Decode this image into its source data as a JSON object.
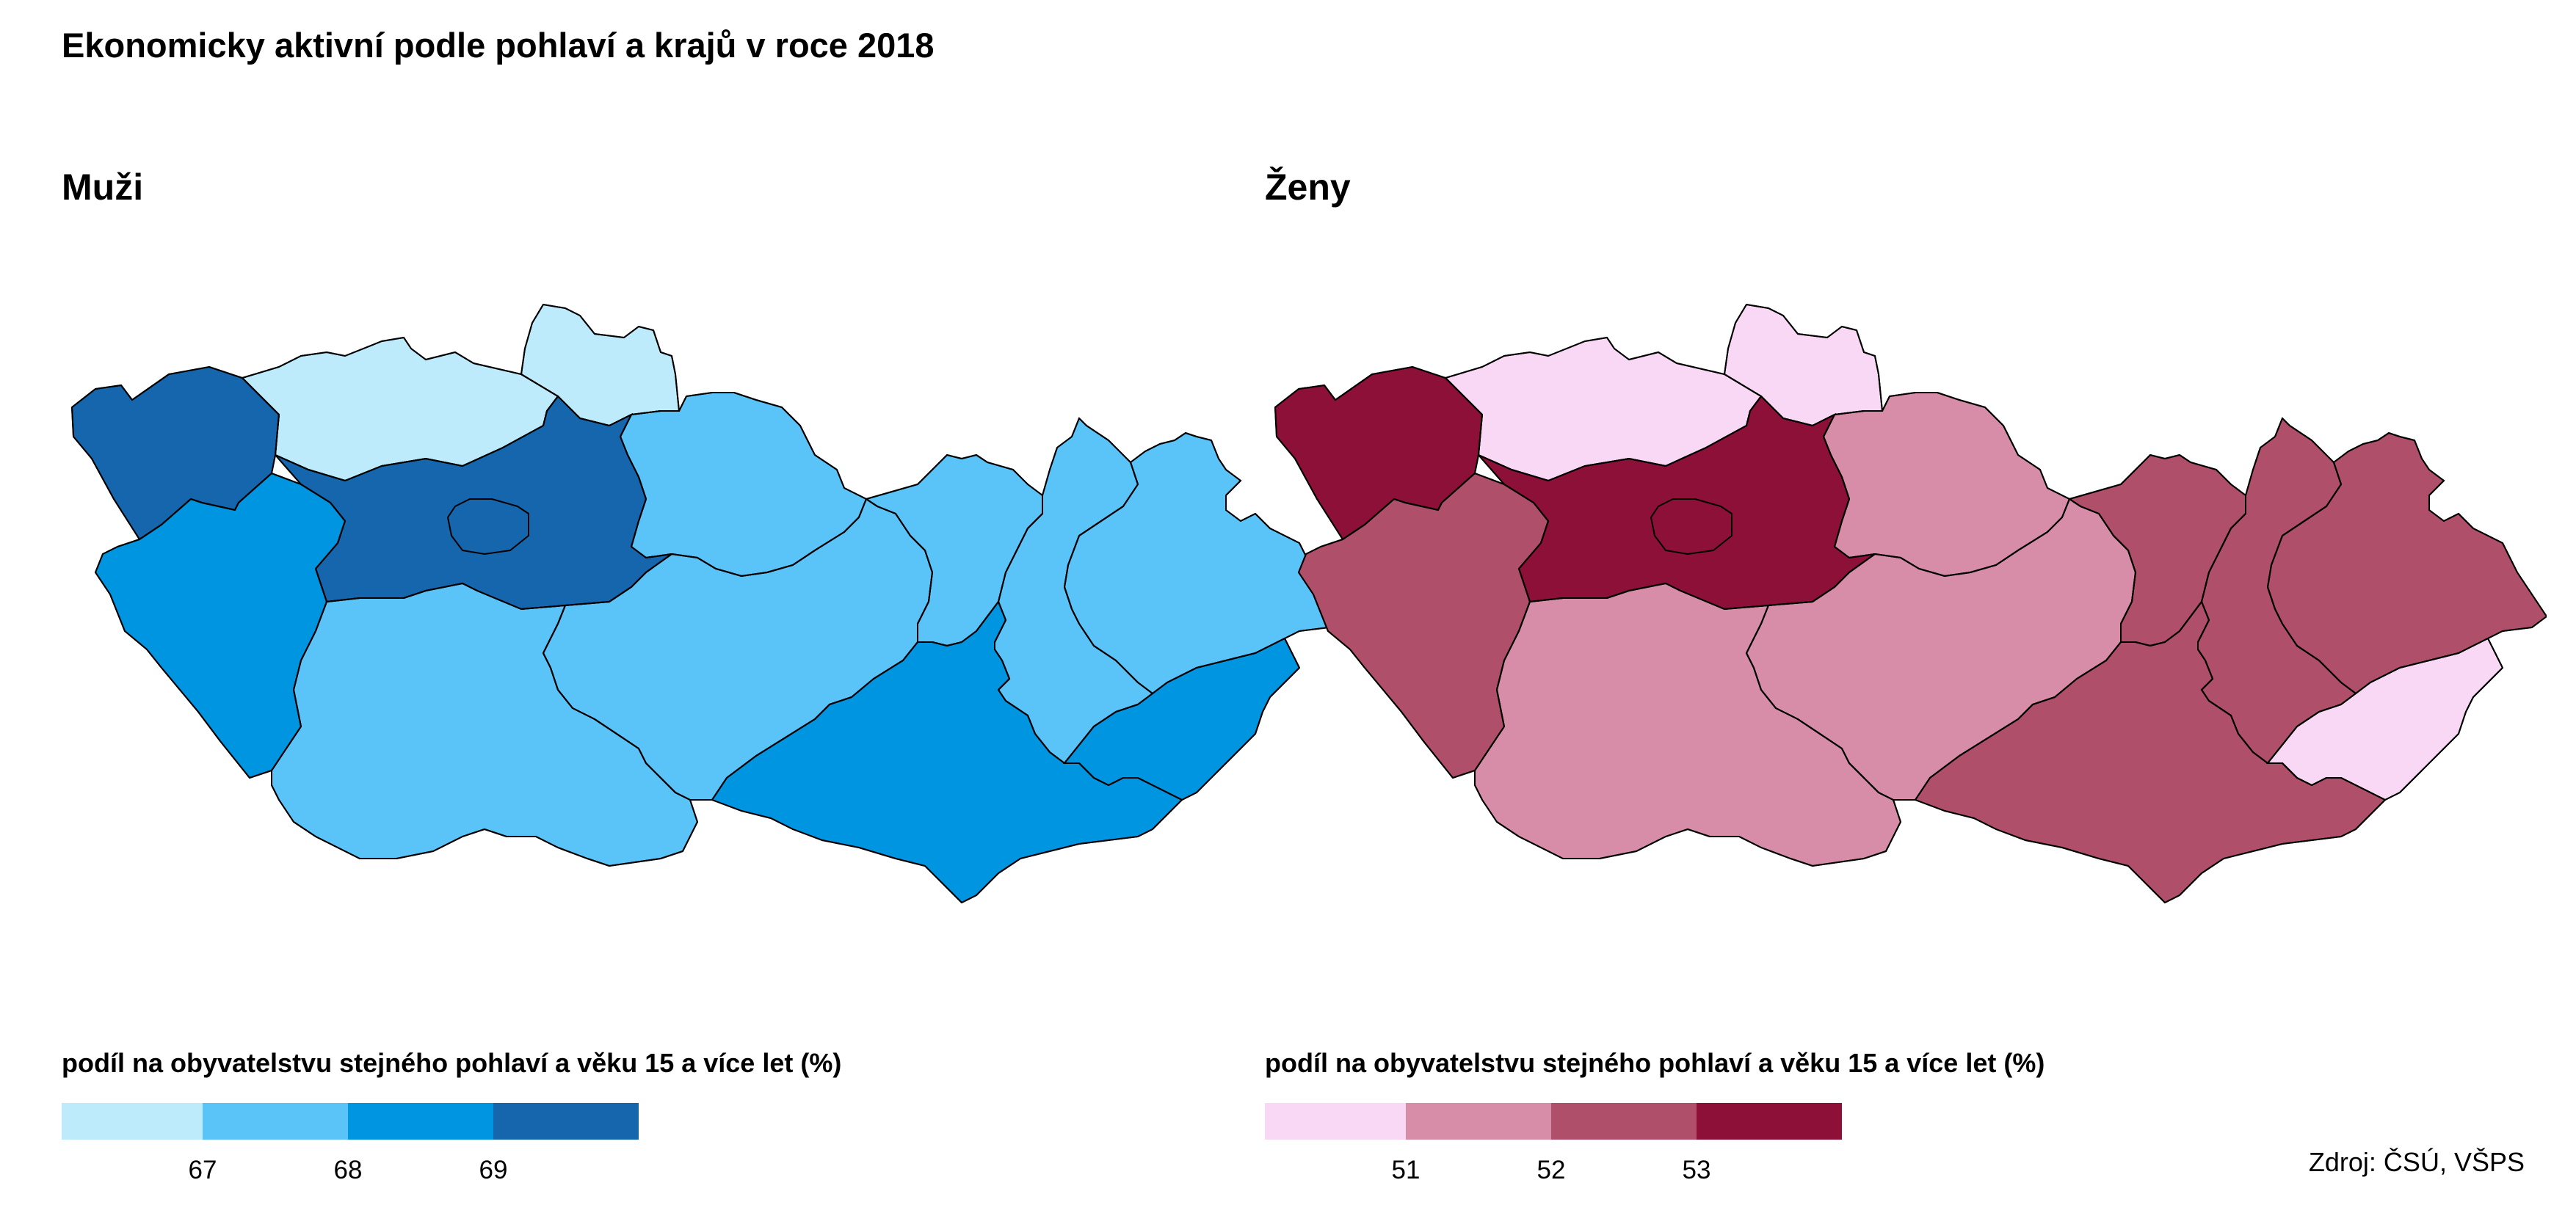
{
  "title": "Ekonomicky aktivní podle pohlaví a krajů v roce 2018",
  "source": "Zdroj: ČSÚ, VŠPS",
  "panels": [
    {
      "heading": "Muži",
      "legend_title": "podíl na obyvatelstvu stejného pohlaví a věku 15 a více let (%)",
      "legend_colors": [
        "#bdebfc",
        "#5ac3f8",
        "#0095e0",
        "#1666ad"
      ],
      "ticks": [
        "67",
        "68",
        "69"
      ]
    },
    {
      "heading": "Ženy",
      "legend_title": "podíl na obyvatelstvu stejného pohlaví a věku 15 a více let (%)",
      "legend_colors": [
        "#f8d8f4",
        "#d78ca8",
        "#b04f6a",
        "#8c1038"
      ],
      "ticks": [
        "51",
        "52",
        "53"
      ]
    }
  ],
  "chart_data": [
    {
      "type": "choropleth",
      "title": "Muži",
      "legend_title": "podíl na obyvatelstvu stejného pohlaví a věku 15 a více let (%)",
      "breaks": [
        67,
        68,
        69
      ],
      "palette": [
        "#bdebfc",
        "#5ac3f8",
        "#0095e0",
        "#1666ad"
      ],
      "regions": {
        "karlovarsky": 4,
        "ustecky": 1,
        "liberecky": 1,
        "kralovehradecky": 2,
        "pardubicky": 2,
        "stredocesky": 4,
        "praha": 4,
        "plzensky": 3,
        "jihocesky": 2,
        "vysocina": 2,
        "jihomoravsky": 3,
        "zlinsky": 3,
        "olomoucky": 2,
        "moravskoslezsky": 2
      }
    },
    {
      "type": "choropleth",
      "title": "Ženy",
      "legend_title": "podíl na obyvatelstvu stejného pohlaví a věku 15 a více let (%)",
      "breaks": [
        51,
        52,
        53
      ],
      "palette": [
        "#f8d8f4",
        "#d78ca8",
        "#b04f6a",
        "#8c1038"
      ],
      "regions": {
        "karlovarsky": 4,
        "ustecky": 1,
        "liberecky": 1,
        "kralovehradecky": 2,
        "pardubicky": 3,
        "stredocesky": 4,
        "praha": 4,
        "plzensky": 3,
        "jihocesky": 2,
        "vysocina": 2,
        "jihomoravsky": 3,
        "zlinsky": 1,
        "olomoucky": 3,
        "moravskoslezsky": 3
      }
    }
  ]
}
